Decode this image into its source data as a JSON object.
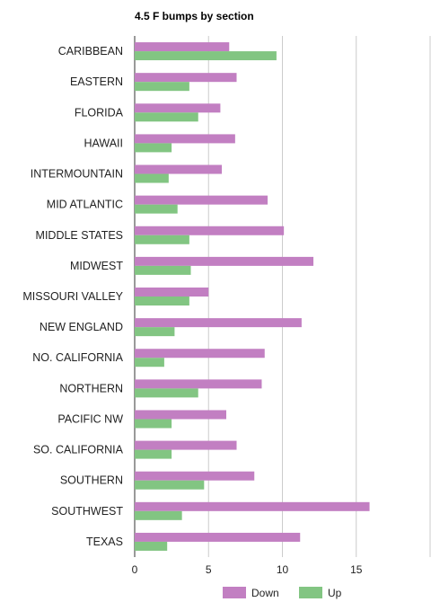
{
  "chart_data": {
    "type": "bar",
    "orientation": "horizontal",
    "title": "4.5 F bumps by section",
    "categories": [
      "CARIBBEAN",
      "EASTERN",
      "FLORIDA",
      "HAWAII",
      "INTERMOUNTAIN",
      "MID ATLANTIC",
      "MIDDLE STATES",
      "MIDWEST",
      "MISSOURI VALLEY",
      "NEW ENGLAND",
      "NO. CALIFORNIA",
      "NORTHERN",
      "PACIFIC NW",
      "SO. CALIFORNIA",
      "SOUTHERN",
      "SOUTHWEST",
      "TEXAS"
    ],
    "series": [
      {
        "name": "Down",
        "color": "#c27fc2",
        "values": [
          6.4,
          6.9,
          5.8,
          6.8,
          5.9,
          9.0,
          10.1,
          12.1,
          5.0,
          11.3,
          8.8,
          8.6,
          6.2,
          6.9,
          8.1,
          15.9,
          11.2
        ]
      },
      {
        "name": "Up",
        "color": "#82c582",
        "values": [
          9.6,
          3.7,
          4.3,
          2.5,
          2.3,
          2.9,
          3.7,
          3.8,
          3.7,
          2.7,
          2.0,
          4.3,
          2.5,
          2.5,
          4.7,
          3.2,
          2.2
        ]
      }
    ],
    "xlim": [
      0,
      20
    ],
    "xticks": [
      "0",
      "5",
      "10",
      "15"
    ],
    "grid": true,
    "legend_position": "bottom"
  }
}
